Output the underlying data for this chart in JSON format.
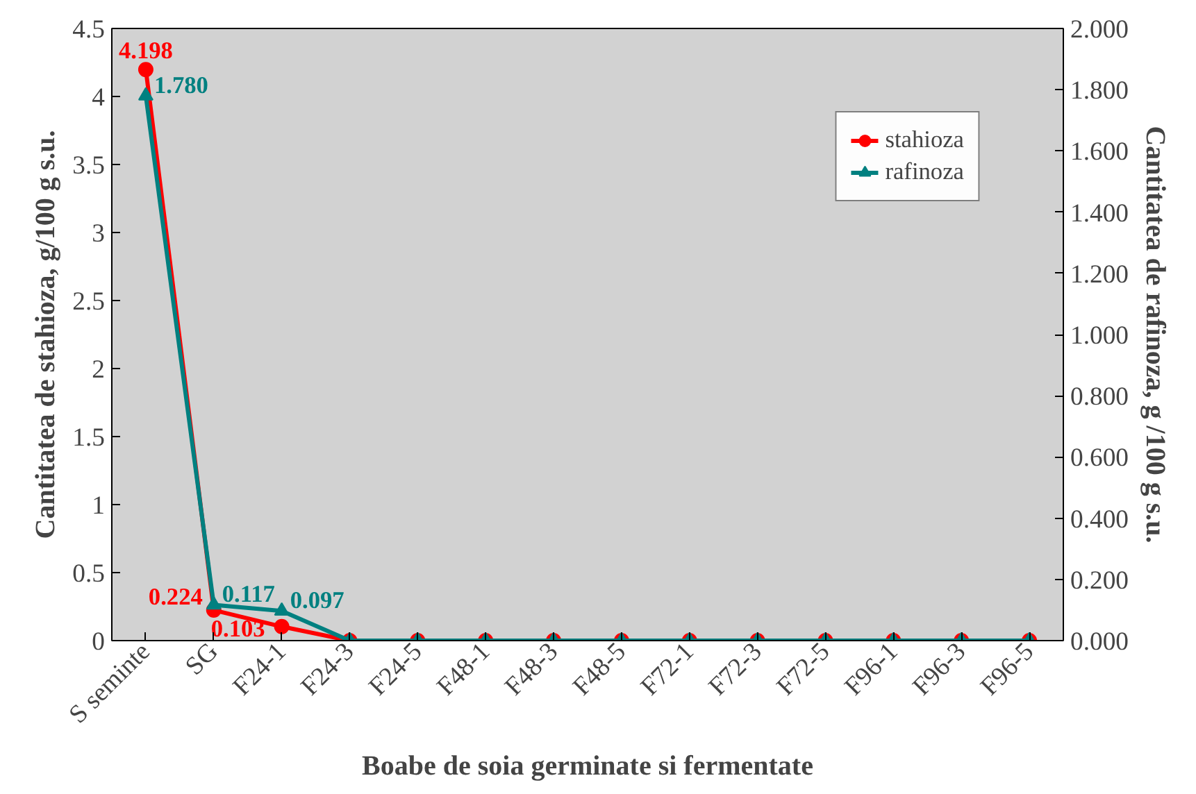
{
  "chart_data": {
    "type": "line",
    "xlabel": "Boabe de soia germinate si fermentate",
    "ylabel": "Cantitatea de stahioza, g/100 g s.u.",
    "y2label": "Cantitatea de rafinoza, g /100 g s.u.",
    "categories": [
      "S seminte",
      "SG",
      "F24-1",
      "F24-3",
      "F24-5",
      "F48-1",
      "F48-3",
      "F48-5",
      "F72-1",
      "F72-3",
      "F72-5",
      "F96-1",
      "F96-3",
      "F96-5"
    ],
    "series": [
      {
        "name": "stahioza",
        "color": "#ff0000",
        "marker": "circle",
        "values": [
          4.198,
          0.224,
          0.103,
          0,
          0,
          0,
          0,
          0,
          0,
          0,
          0,
          0,
          0,
          0
        ],
        "value_labels": [
          "4.198",
          "0.224",
          "0.103",
          null,
          null,
          null,
          null,
          null,
          null,
          null,
          null,
          null,
          null,
          null
        ]
      },
      {
        "name": "rafinoza",
        "color": "#008080",
        "marker": "triangle",
        "axis": "y2",
        "values": [
          1.78,
          0.117,
          0.097,
          0,
          0,
          0,
          0,
          0,
          0,
          0,
          0,
          0,
          0,
          0
        ],
        "value_labels": [
          "1.780",
          "0.117",
          "0.097",
          null,
          null,
          null,
          null,
          null,
          null,
          null,
          null,
          null,
          null,
          null
        ]
      }
    ],
    "ylim": [
      0,
      4.5
    ],
    "yticks": [
      0,
      0.5,
      1,
      1.5,
      2,
      2.5,
      3,
      3.5,
      4,
      4.5
    ],
    "y2lim": [
      0,
      2
    ],
    "y2ticks": [
      {
        "value": 0,
        "label": "0.000"
      },
      {
        "value": 0.2,
        "label": "0.200"
      },
      {
        "value": 0.4,
        "label": "0.400"
      },
      {
        "value": 0.6,
        "label": "0.600"
      },
      {
        "value": 0.8,
        "label": "0.800"
      },
      {
        "value": 1,
        "label": "1.000"
      },
      {
        "value": 1.2,
        "label": "1.200"
      },
      {
        "value": 1.4,
        "label": "1.400"
      },
      {
        "value": 1.6,
        "label": "1.600"
      },
      {
        "value": 1.8,
        "label": "1.800"
      },
      {
        "value": 2,
        "label": "2.000"
      }
    ],
    "grid": false,
    "legend": "top right",
    "line_style": "solid"
  }
}
